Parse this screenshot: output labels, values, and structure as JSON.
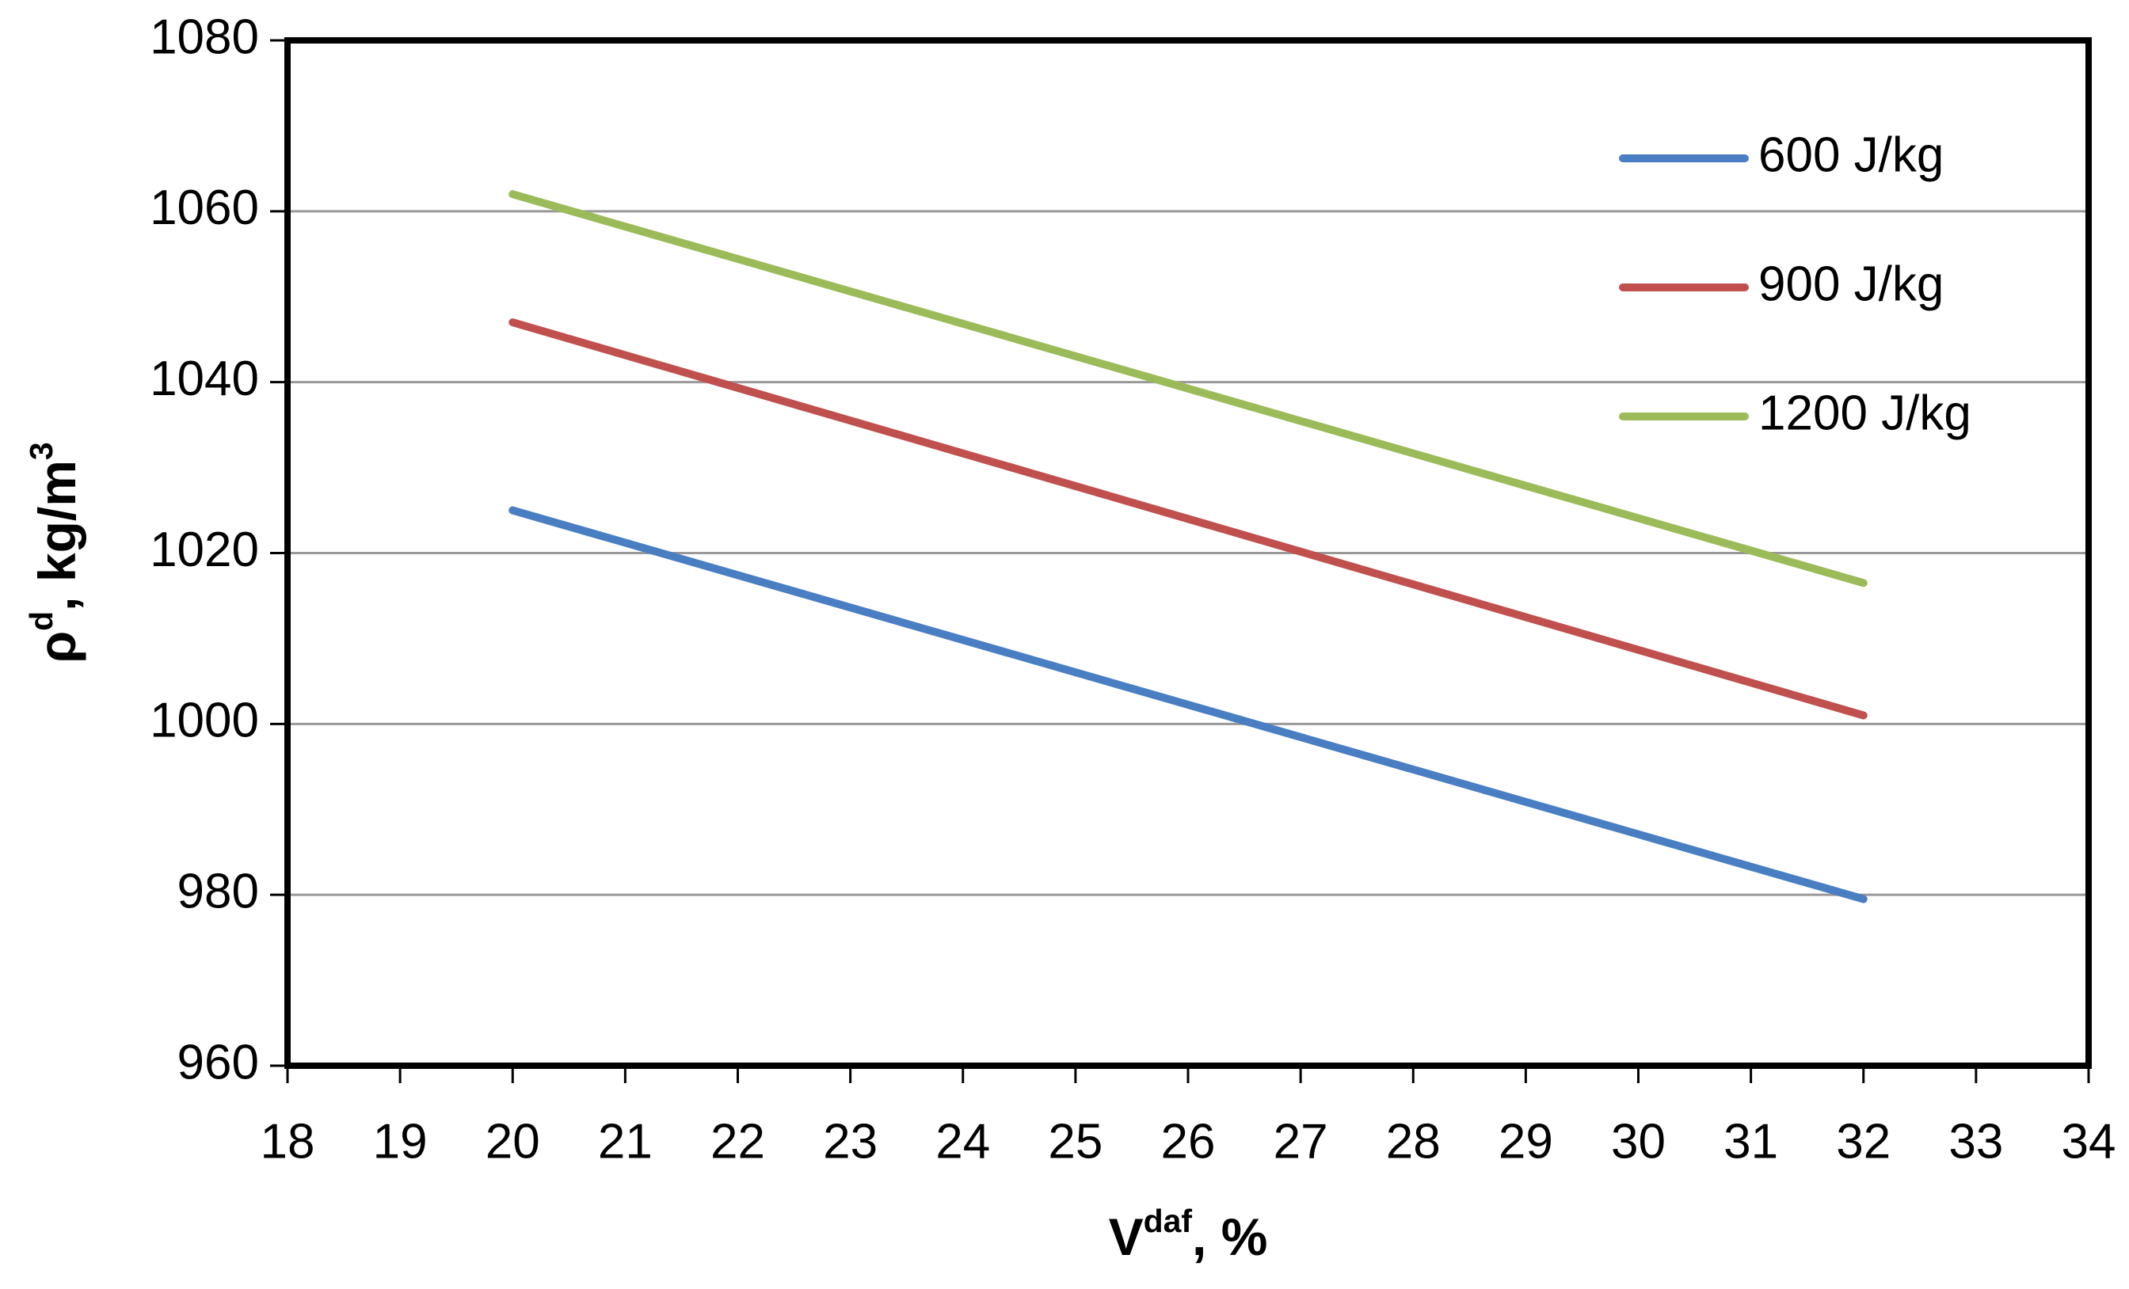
{
  "chart_data": {
    "type": "line",
    "x_label_parts": [
      "V",
      "daf",
      ", %"
    ],
    "y_label_parts": [
      "ρ",
      "d",
      ", kg/m",
      "3"
    ],
    "x": [
      20,
      32
    ],
    "series": [
      {
        "name": "600 J/kg",
        "color": "#4a7ec3",
        "values": [
          1025,
          979.5
        ]
      },
      {
        "name": "900 J/kg",
        "color": "#c0504d",
        "values": [
          1047,
          1001
        ]
      },
      {
        "name": "1200 J/kg",
        "color": "#9bbb59",
        "values": [
          1062,
          1016.5
        ]
      }
    ],
    "xlim": [
      18,
      34
    ],
    "xticks": [
      18,
      19,
      20,
      21,
      22,
      23,
      24,
      25,
      26,
      27,
      28,
      29,
      30,
      31,
      32,
      33,
      34
    ],
    "ylim": [
      960,
      1080
    ],
    "yticks": [
      960,
      980,
      1000,
      1020,
      1040,
      1060,
      1080
    ],
    "grid": true,
    "legend": "upper right"
  }
}
